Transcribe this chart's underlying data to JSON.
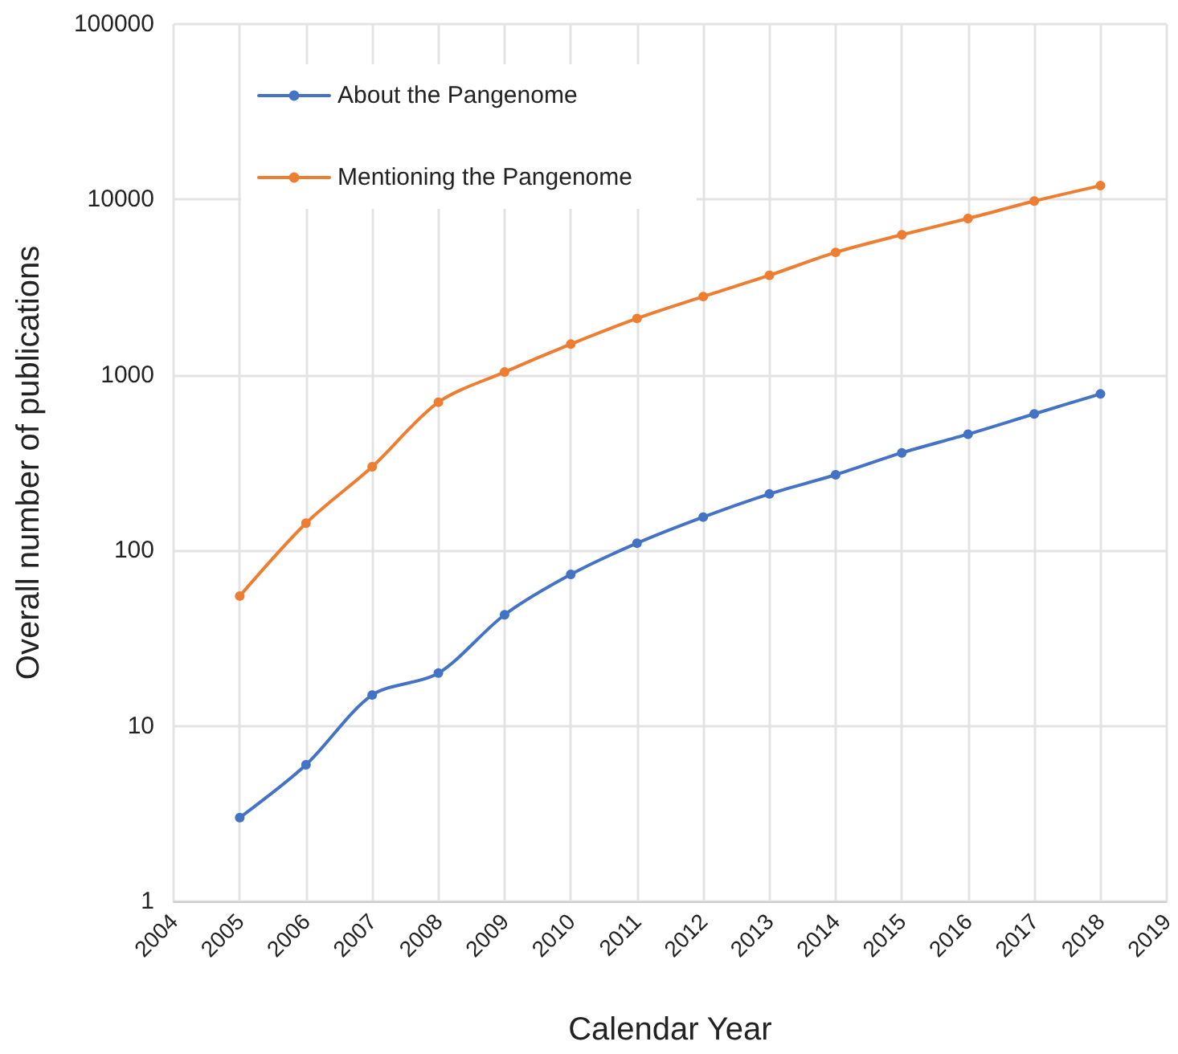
{
  "chart_data": {
    "type": "line",
    "xlabel": "Calendar Year",
    "ylabel": "Overall number of publications",
    "x": [
      2005,
      2006,
      2007,
      2008,
      2009,
      2010,
      2011,
      2012,
      2013,
      2014,
      2015,
      2016,
      2017,
      2018
    ],
    "series": [
      {
        "name": "About the Pangenome",
        "color": "#4472c4",
        "values": [
          3,
          6,
          15,
          20,
          43,
          73,
          110,
          155,
          210,
          270,
          360,
          460,
          600,
          780
        ]
      },
      {
        "name": "Mentioning the Pangenome",
        "color": "#ed7d31",
        "values": [
          55,
          143,
          300,
          700,
          1040,
          1500,
          2100,
          2800,
          3700,
          5000,
          6300,
          7800,
          9800,
          12000
        ]
      }
    ],
    "xlim": [
      2004,
      2019
    ],
    "xticks": [
      2004,
      2005,
      2006,
      2007,
      2008,
      2009,
      2010,
      2011,
      2012,
      2013,
      2014,
      2015,
      2016,
      2017,
      2018,
      2019
    ],
    "ylim": [
      1,
      100000
    ],
    "yticks": [
      1,
      10,
      100,
      1000,
      10000,
      100000
    ],
    "log": "y",
    "grid": true,
    "legend": "top left",
    "marker": "circle",
    "line_style": "solid"
  }
}
